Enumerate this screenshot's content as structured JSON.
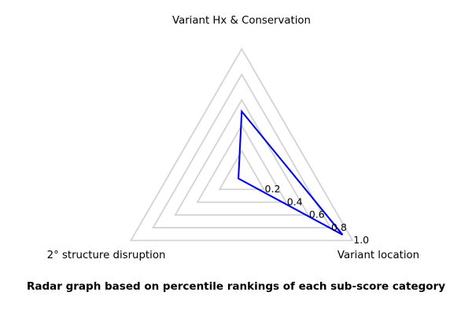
{
  "figure": {
    "caption": "Radar graph based on percentile rankings of each sub-score category"
  },
  "chart_data": {
    "type": "radar",
    "categories": [
      "Variant Hx & Conservation",
      "Variant location",
      "2° structure disruption"
    ],
    "values": [
      0.51,
      0.91,
      0.03
    ],
    "ticks": [
      0.2,
      0.4,
      0.6,
      0.8,
      1.0
    ],
    "tick_labels": [
      "0.2",
      "0.4",
      "0.6",
      "0.8",
      "1.0"
    ],
    "rlim": [
      0,
      1.0
    ],
    "grid": true,
    "legend_position": "none",
    "axis_angles_deg": [
      90,
      -30,
      210
    ],
    "tick_axis_angle_deg": -30,
    "colors": {
      "data_line": "#0000ee",
      "grid_line": "#d3d3d3",
      "text": "#000000",
      "background": "#ffffff"
    }
  }
}
